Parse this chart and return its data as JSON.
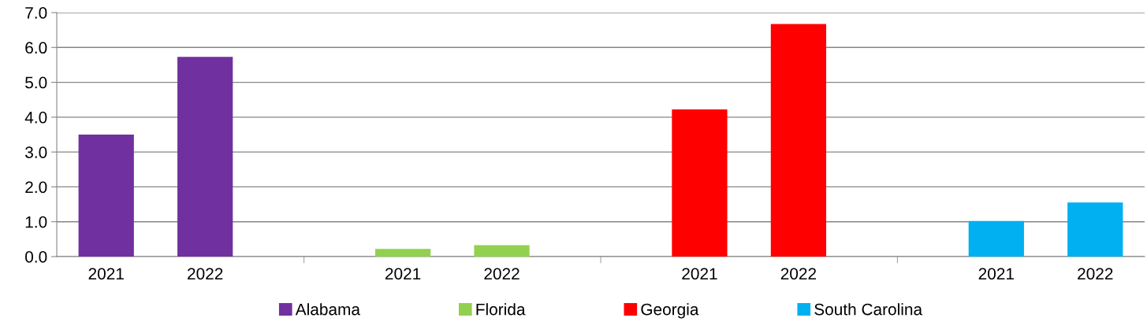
{
  "chart_data": {
    "type": "bar",
    "categories": [
      "2021",
      "2022",
      null,
      "2021",
      "2022",
      null,
      "2021",
      "2022",
      null,
      "2021",
      "2022"
    ],
    "series": [
      {
        "name": "Alabama",
        "color": "#7030a0",
        "values": [
          3.5,
          5.73,
          null,
          null,
          null,
          null,
          null,
          null,
          null,
          null,
          null
        ]
      },
      {
        "name": "Florida",
        "color": "#92d050",
        "values": [
          null,
          null,
          null,
          0.22,
          0.33,
          null,
          null,
          null,
          null,
          null,
          null
        ]
      },
      {
        "name": "Georgia",
        "color": "#ff0000",
        "values": [
          null,
          null,
          null,
          null,
          null,
          null,
          4.22,
          6.67,
          null,
          null,
          null
        ]
      },
      {
        "name": "South Carolina",
        "color": "#00b0f0",
        "values": [
          null,
          null,
          null,
          null,
          null,
          null,
          null,
          null,
          null,
          1.02,
          1.55
        ]
      }
    ],
    "ylim": [
      0,
      7
    ],
    "yticks": [
      {
        "value": 0,
        "label": "0.0"
      },
      {
        "value": 1,
        "label": "1.0"
      },
      {
        "value": 2,
        "label": "2.0"
      },
      {
        "value": 3,
        "label": "3.0"
      },
      {
        "value": 4,
        "label": "4.0"
      },
      {
        "value": 5,
        "label": "5.0"
      },
      {
        "value": 6,
        "label": "6.0"
      },
      {
        "value": 7,
        "label": "7.0"
      }
    ],
    "grid": "y",
    "legend": "bottom"
  }
}
